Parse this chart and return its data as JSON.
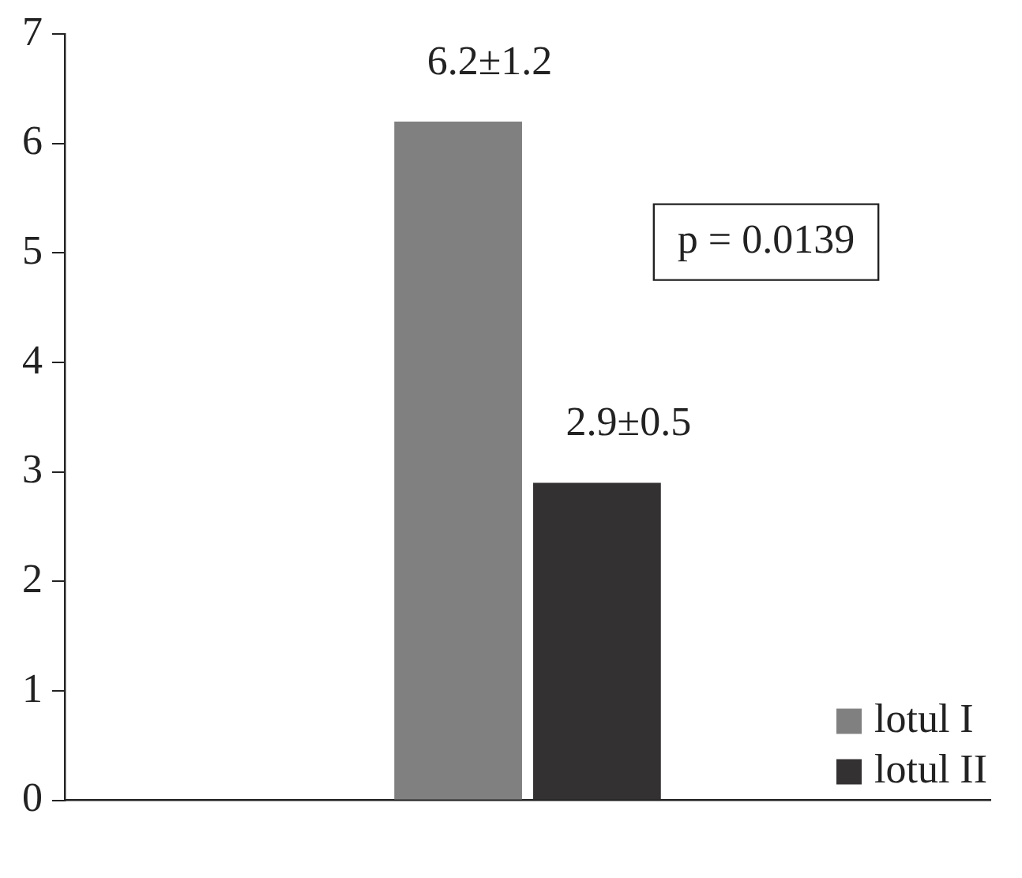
{
  "chart_data": {
    "type": "bar",
    "categories": [
      null,
      null,
      null
    ],
    "series": [
      {
        "name": "lotul I",
        "color": "#808080",
        "values": [
          null,
          6.2,
          null
        ],
        "value_labels": [
          null,
          "6.2±1.2",
          null
        ]
      },
      {
        "name": "lotul II",
        "color": "#333132",
        "values": [
          null,
          2.9,
          null
        ],
        "value_labels": [
          null,
          "2.9±0.5",
          null
        ]
      }
    ],
    "ylim": [
      0,
      7
    ],
    "yticks": [
      0,
      1,
      2,
      3,
      4,
      5,
      6,
      7
    ],
    "grid": false,
    "legend": "bottom right",
    "annotations": [
      "p = 0.0139"
    ]
  }
}
